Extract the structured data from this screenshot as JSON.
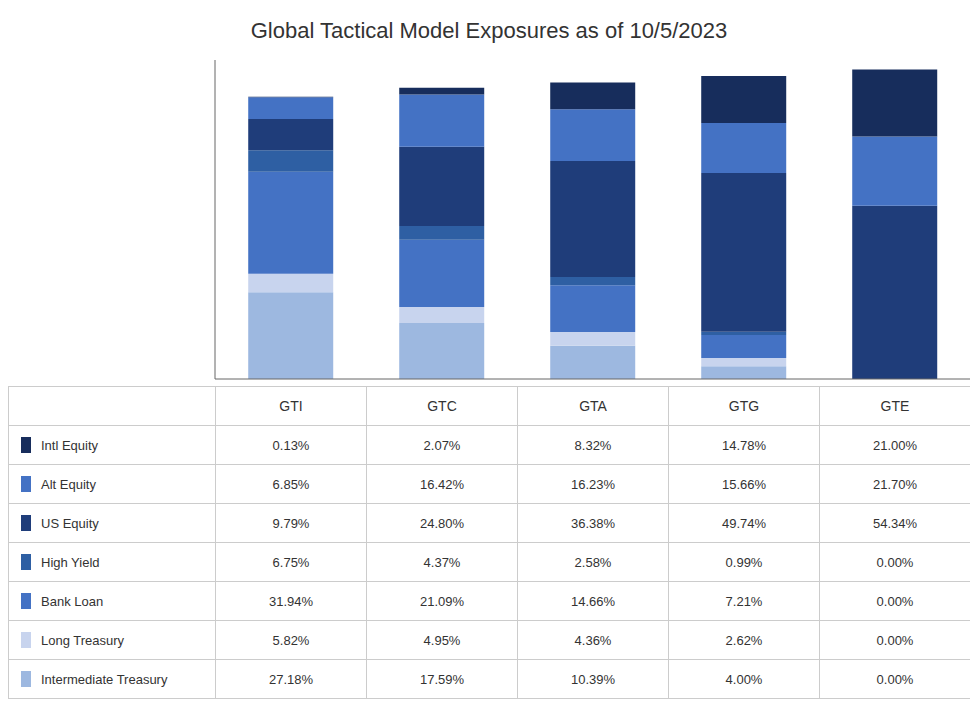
{
  "chart_data": {
    "type": "bar",
    "title": "Global Tactical Model Exposures as of 10/5/2023",
    "categories": [
      "GTI",
      "GTC",
      "GTA",
      "GTG",
      "GTE"
    ],
    "stacked": true,
    "ylim": [
      0,
      100
    ],
    "grid": false,
    "tick_labels": false,
    "series": [
      {
        "name": "Intermediate Treasury",
        "color": "#9db8e0",
        "values": [
          27.18,
          17.59,
          10.39,
          4.0,
          0.0
        ],
        "value_labels": [
          "27.18%",
          "17.59%",
          "10.39%",
          "4.00%",
          "0.00%"
        ]
      },
      {
        "name": "Long Treasury",
        "color": "#c8d4ee",
        "values": [
          5.82,
          4.95,
          4.36,
          2.62,
          0.0
        ],
        "value_labels": [
          "5.82%",
          "4.95%",
          "4.36%",
          "2.62%",
          "0.00%"
        ]
      },
      {
        "name": "Bank Loan",
        "color": "#4472c4",
        "values": [
          31.94,
          21.09,
          14.66,
          7.21,
          0.0
        ],
        "value_labels": [
          "31.94%",
          "21.09%",
          "14.66%",
          "7.21%",
          "0.00%"
        ]
      },
      {
        "name": "High Yield",
        "color": "#2e5fa3",
        "values": [
          6.75,
          4.37,
          2.58,
          0.99,
          0.0
        ],
        "value_labels": [
          "6.75%",
          "4.37%",
          "2.58%",
          "0.99%",
          "0.00%"
        ]
      },
      {
        "name": "US Equity",
        "color": "#1f3d7a",
        "values": [
          9.79,
          24.8,
          36.38,
          49.74,
          54.34
        ],
        "value_labels": [
          "9.79%",
          "24.80%",
          "36.38%",
          "49.74%",
          "54.34%"
        ]
      },
      {
        "name": "Alt Equity",
        "color": "#4472c4",
        "values": [
          6.85,
          16.42,
          16.23,
          15.66,
          21.7
        ],
        "value_labels": [
          "6.85%",
          "16.42%",
          "16.23%",
          "15.66%",
          "21.70%"
        ]
      },
      {
        "name": "Intl Equity",
        "color": "#172d5c",
        "values": [
          0.13,
          2.07,
          8.32,
          14.78,
          21.0
        ],
        "value_labels": [
          "0.13%",
          "2.07%",
          "8.32%",
          "14.78%",
          "21.00%"
        ]
      }
    ]
  }
}
